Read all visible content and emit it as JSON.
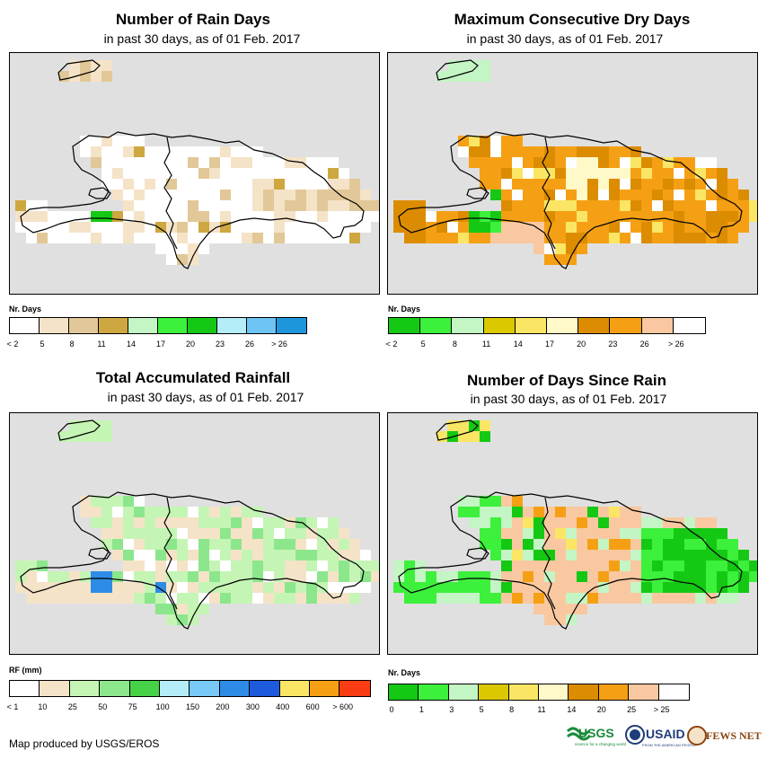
{
  "credit": "Map produced by USGS/EROS",
  "logos": {
    "usgs": "USGS",
    "usgs_tag": "science for a changing world",
    "usaid": "USAID",
    "usaid_tag": "FROM THE AMERICAN PEOPLE",
    "fews": "FEWS NET"
  },
  "panels": [
    {
      "title": "Number of Rain Days",
      "subtitle": "in past 30 days, as of 01 Feb. 2017",
      "unit": "Nr. Days",
      "colors": [
        "#ffffff",
        "#f5e3c8",
        "#e2c898",
        "#cfa740",
        "#c4f5c4",
        "#3cf03c",
        "#14c814",
        "#b4ecf8",
        "#6ec4f4",
        "#1e96dc"
      ],
      "ticks": [
        "< 2",
        "5",
        "8",
        "11",
        "14",
        "17",
        "20",
        "23",
        "26",
        "> 26"
      ],
      "cells": {
        "0": [
          [
            3,
            0
          ],
          [
            3,
            1
          ],
          [
            4,
            1
          ],
          [
            4,
            2
          ],
          [
            4,
            3
          ],
          [
            0,
            1
          ],
          [
            0,
            2
          ],
          [
            0,
            3
          ]
        ],
        "1": [
          [
            5,
            0
          ],
          [
            6,
            0
          ],
          [
            7,
            0
          ],
          [
            8,
            0
          ],
          [
            9,
            0
          ],
          [
            10,
            0
          ],
          [
            11,
            0
          ],
          [
            12,
            0
          ],
          [
            13,
            0
          ],
          [
            14,
            0
          ],
          [
            15,
            0
          ],
          [
            16,
            0
          ],
          [
            17,
            0
          ],
          [
            18,
            0
          ],
          [
            19,
            0
          ],
          [
            20,
            0
          ],
          [
            21,
            0
          ],
          [
            22,
            0
          ],
          [
            23,
            0
          ],
          [
            5,
            1
          ],
          [
            19,
            1
          ],
          [
            20,
            1
          ],
          [
            21,
            1
          ],
          [
            6,
            1
          ],
          [
            7,
            1
          ],
          [
            0,
            0
          ],
          [
            1,
            0
          ]
        ],
        "2": [
          [
            21,
            2
          ],
          [
            22,
            2
          ],
          [
            23,
            2
          ],
          [
            22,
            3
          ],
          [
            23,
            3
          ]
        ],
        "3": [
          [
            3,
            2
          ],
          [
            5,
            2
          ]
        ],
        "4": [
          [
            9,
            1
          ]
        ],
        "5": [
          [
            8,
            2
          ]
        ],
        "6": [
          [
            4,
            0
          ],
          [
            4,
            -1
          ]
        ]
      },
      "grid": "rain"
    },
    {
      "title": "Maximum Consecutive Dry Days",
      "subtitle": "in past 30 days, as of 01 Feb. 2017",
      "unit": "Nr. Days",
      "colors": [
        "#14c814",
        "#3cf03c",
        "#c4f5c4",
        "#dcc800",
        "#fae664",
        "#fff8c8",
        "#dc8c00",
        "#f5a014",
        "#fac8a0",
        "#ffffff"
      ],
      "ticks": [
        "< 2",
        "5",
        "8",
        "11",
        "14",
        "17",
        "20",
        "23",
        "26",
        "> 26"
      ],
      "grid": "dry"
    },
    {
      "title": "Total Accumulated Rainfall",
      "subtitle": "in past 30 days, as of 01 Feb. 2017",
      "unit": "RF (mm)",
      "colors": [
        "#ffffff",
        "#f5e3c8",
        "#c4f5b4",
        "#8ce68c",
        "#46d246",
        "#b4ecf8",
        "#78c8f8",
        "#2e8ce6",
        "#1e5adc",
        "#fae664",
        "#f5a014",
        "#fa3c14"
      ],
      "ticks": [
        "< 1",
        "10",
        "25",
        "50",
        "75",
        "100",
        "150",
        "200",
        "300",
        "400",
        "600",
        "> 600"
      ],
      "grid": "rf"
    },
    {
      "title": "Number of Days Since Rain",
      "subtitle": "in past 30 days, as of 01 Feb. 2017",
      "unit": "Nr. Days",
      "colors": [
        "#14c814",
        "#3cf03c",
        "#c4f5c4",
        "#dcc800",
        "#fae664",
        "#fff8c8",
        "#dc8c00",
        "#f5a014",
        "#fac8a0",
        "#ffffff"
      ],
      "ticks": [
        "0",
        "1",
        "3",
        "5",
        "8",
        "11",
        "14",
        "20",
        "25",
        "> 25"
      ],
      "grid": "since"
    }
  ]
}
